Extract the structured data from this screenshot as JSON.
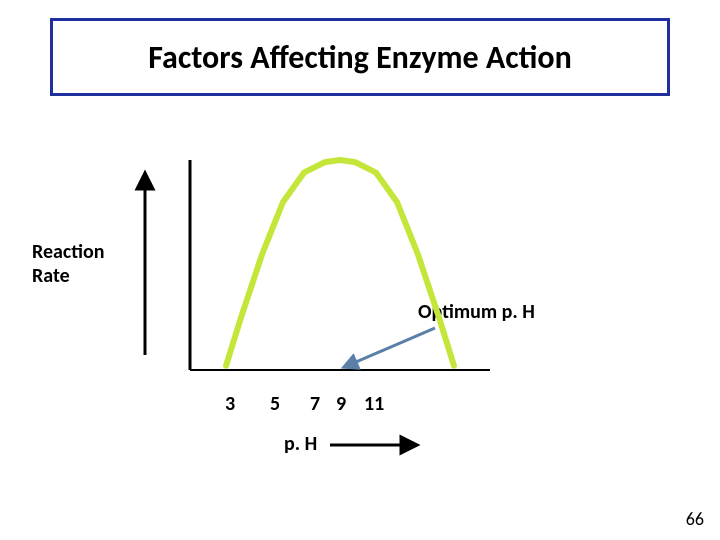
{
  "title": "Factors Affecting Enzyme Action",
  "title_fontsize": 32,
  "title_border_color": "#1f2f9e",
  "yaxis_label": "Reaction\nRate",
  "yaxis_label_fontsize": 20,
  "optimum_label": "Optimum p. H",
  "optimum_label_fontsize": 20,
  "xaxis_label": "p. H",
  "xaxis_label_fontsize": 20,
  "page_number": "66",
  "page_number_fontsize": 18,
  "chart": {
    "type": "line",
    "background_color": "#ffffff",
    "axis_color": "#000000",
    "axis_width": 3,
    "x_ticks": [
      3,
      5,
      7,
      9,
      11
    ],
    "tick_fontsize": 20,
    "x_min": 2,
    "x_max": 12,
    "curve_color": "#c4e63a",
    "curve_width": 6,
    "curve_points_x": [
      3.2,
      3.7,
      4.4,
      5.1,
      5.8,
      6.5,
      7.0,
      7.5,
      8.2,
      8.9,
      9.6,
      10.3,
      10.8
    ],
    "curve_points_y": [
      0.02,
      0.25,
      0.55,
      0.8,
      0.94,
      0.99,
      1.0,
      0.99,
      0.94,
      0.8,
      0.55,
      0.25,
      0.02
    ],
    "y_min": 0,
    "y_max": 1,
    "up_arrow_color": "#000000",
    "up_arrow_width": 3,
    "optimum_arrow_color": "#5a7fa8",
    "optimum_arrow_width": 3,
    "right_arrow_color": "#000000",
    "right_arrow_width": 3
  }
}
